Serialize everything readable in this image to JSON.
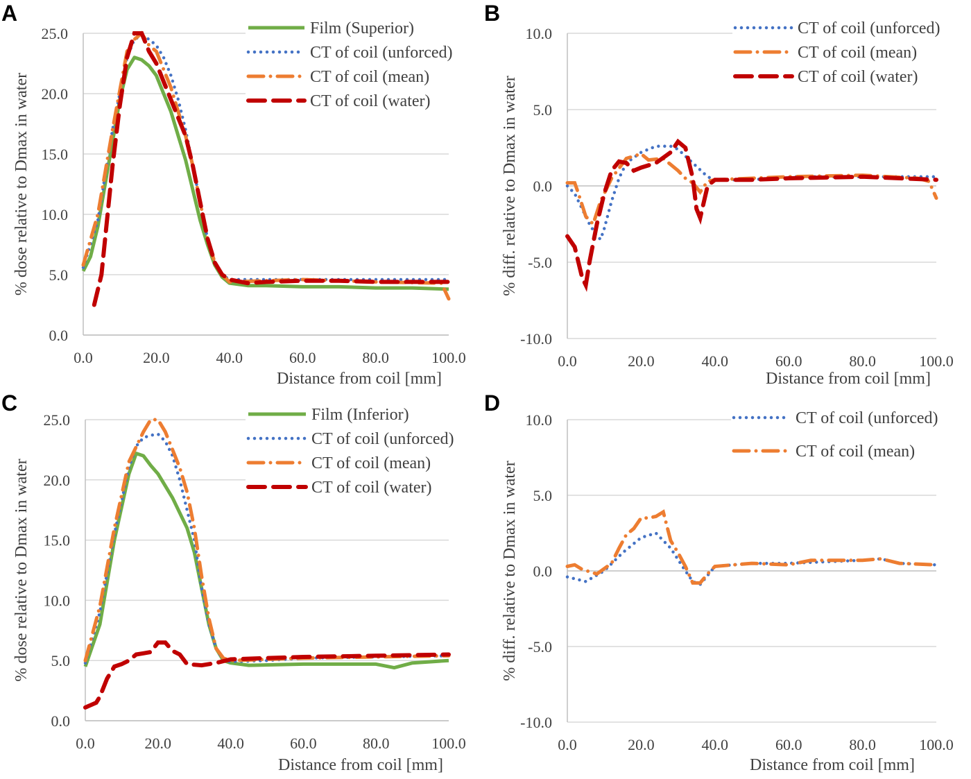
{
  "colors": {
    "film": "#70ad47",
    "unforced": "#4472c4",
    "mean": "#ed7d31",
    "water": "#c00000",
    "grid": "#d9d9d9",
    "axis": "#bfbfbf"
  },
  "chart_data": [
    {
      "panel": "A",
      "type": "line",
      "xlabel": "Distance from coil [mm]",
      "ylabel": "% dose relative to Dmax in water",
      "xlim": [
        0,
        100
      ],
      "ylim": [
        0,
        25
      ],
      "xticks": [
        0,
        20,
        40,
        60,
        80,
        100
      ],
      "xtick_labels": [
        "0.0",
        "20.0",
        "40.0",
        "60.0",
        "80.0",
        "100.0"
      ],
      "yticks": [
        0,
        5,
        10,
        15,
        20,
        25
      ],
      "ytick_labels": [
        "0.0",
        "5.0",
        "10.0",
        "15.0",
        "20.0",
        "25.0"
      ],
      "legend": "top-right",
      "grid": true,
      "series": [
        {
          "name": "Film (Superior)",
          "style": "film",
          "x": [
            0,
            2,
            4,
            6,
            8,
            10,
            12,
            14,
            16,
            18,
            20,
            22,
            24,
            26,
            28,
            30,
            32,
            34,
            36,
            38,
            40,
            45,
            50,
            60,
            70,
            80,
            90,
            100
          ],
          "y": [
            5.3,
            6.5,
            9,
            12.5,
            16,
            19.5,
            22,
            23,
            22.8,
            22.3,
            21.5,
            20,
            18.5,
            16.5,
            14.5,
            12,
            9.5,
            7.5,
            5.8,
            4.8,
            4.3,
            4.1,
            4.1,
            4.0,
            4.0,
            3.9,
            3.9,
            3.8
          ]
        },
        {
          "name": "CT of coil (unforced)",
          "style": "unforced",
          "x": [
            0,
            4,
            8,
            12,
            14,
            16,
            18,
            20,
            22,
            24,
            26,
            28,
            30,
            32,
            34,
            36,
            38,
            40,
            50,
            60,
            80,
            100
          ],
          "y": [
            5.6,
            9.5,
            17,
            23,
            24.5,
            24.8,
            24.5,
            24,
            23,
            21.5,
            19.5,
            17,
            14,
            11,
            8,
            6,
            5,
            4.6,
            4.6,
            4.6,
            4.6,
            4.6
          ]
        },
        {
          "name": "CT of coil (mean)",
          "style": "mean",
          "x": [
            0,
            4,
            8,
            12,
            14,
            16,
            18,
            20,
            22,
            24,
            26,
            28,
            30,
            32,
            34,
            36,
            38,
            40,
            60,
            80,
            98,
            100
          ],
          "y": [
            5.8,
            10,
            17,
            23.5,
            24.5,
            25,
            24,
            23.5,
            22,
            20.5,
            18.5,
            16.5,
            14,
            11,
            8,
            6,
            5,
            4.4,
            4.6,
            4.4,
            4.3,
            3.0
          ]
        },
        {
          "name": "CT of coil (water)",
          "style": "water",
          "x": [
            3,
            5,
            6,
            8,
            10,
            12,
            14,
            16,
            18,
            20,
            22,
            24,
            26,
            28,
            30,
            32,
            34,
            36,
            38,
            40,
            45,
            50,
            60,
            70,
            80,
            90,
            100
          ],
          "y": [
            2.5,
            5,
            8,
            14,
            19,
            23,
            25,
            25,
            23.5,
            22.5,
            21,
            19.5,
            18,
            16.5,
            14,
            11,
            8,
            6,
            5,
            4.6,
            4.3,
            4.4,
            4.5,
            4.5,
            4.4,
            4.4,
            4.4
          ]
        }
      ]
    },
    {
      "panel": "B",
      "type": "line",
      "xlabel": "Distance from coil [mm]",
      "ylabel": "% diff. relative to Dmax in water",
      "xlim": [
        0,
        100
      ],
      "ylim": [
        -10,
        10
      ],
      "xticks": [
        0,
        20,
        40,
        60,
        80,
        100
      ],
      "xtick_labels": [
        "0.0",
        "20.0",
        "40.0",
        "60.0",
        "80.0",
        "100.0"
      ],
      "yticks": [
        -10,
        -5,
        0,
        5,
        10
      ],
      "ytick_labels": [
        "-10.0",
        "-5.0",
        "0.0",
        "5.0",
        "10.0"
      ],
      "legend": "top-right",
      "grid": true,
      "series": [
        {
          "name": "CT of coil (unforced)",
          "style": "unforced",
          "x": [
            0,
            2,
            4,
            6,
            8,
            9,
            10,
            12,
            14,
            16,
            20,
            24,
            28,
            30,
            34,
            38,
            40,
            50,
            60,
            80,
            100
          ],
          "y": [
            0,
            -0.5,
            -1.5,
            -2.5,
            -3.3,
            -3.5,
            -2.8,
            -1,
            0.5,
            1.5,
            2.2,
            2.6,
            2.6,
            2.4,
            1.5,
            0.6,
            0.4,
            0.4,
            0.6,
            0.6,
            0.6
          ]
        },
        {
          "name": "CT of coil (mean)",
          "style": "mean",
          "x": [
            0,
            2,
            3,
            5,
            7,
            9,
            12,
            16,
            20,
            22,
            26,
            30,
            32,
            34,
            36,
            38,
            40,
            50,
            60,
            80,
            95,
            98,
            100
          ],
          "y": [
            0.2,
            0.2,
            -0.5,
            -2,
            -2.5,
            -1,
            0.5,
            1.8,
            2.1,
            1.7,
            1.8,
            1.0,
            0.5,
            0.2,
            -0.4,
            0.3,
            0.4,
            0.5,
            0.6,
            0.7,
            0.5,
            0.3,
            -0.8
          ]
        },
        {
          "name": "CT of coil (water)",
          "style": "water",
          "x": [
            0,
            2,
            4,
            5,
            6,
            8,
            10,
            12,
            14,
            16,
            18,
            20,
            24,
            28,
            30,
            32,
            34,
            35,
            36,
            38,
            40,
            50,
            60,
            80,
            100
          ],
          "y": [
            -3.3,
            -4,
            -6,
            -6.5,
            -5,
            -2.5,
            -0.5,
            1,
            1.6,
            1.5,
            1.0,
            1.2,
            1.5,
            2.2,
            2.9,
            2.5,
            0.5,
            -1.5,
            -2.1,
            0,
            0.4,
            0.4,
            0.5,
            0.6,
            0.4
          ]
        }
      ]
    },
    {
      "panel": "C",
      "type": "line",
      "xlabel": "Distance from coil [mm]",
      "ylabel": "% dose relative to Dmax in water",
      "xlim": [
        0,
        100
      ],
      "ylim": [
        0,
        25
      ],
      "xticks": [
        0,
        20,
        40,
        60,
        80,
        100
      ],
      "xtick_labels": [
        "0.0",
        "20.0",
        "40.0",
        "60.0",
        "80.0",
        "100.0"
      ],
      "yticks": [
        0,
        5,
        10,
        15,
        20,
        25
      ],
      "ytick_labels": [
        "0.0",
        "5.0",
        "10.0",
        "15.0",
        "20.0",
        "25.0"
      ],
      "legend": "top-right",
      "grid": true,
      "series": [
        {
          "name": "Film (Inferior)",
          "style": "film",
          "x": [
            0,
            4,
            8,
            12,
            14,
            16,
            18,
            20,
            24,
            28,
            30,
            32,
            34,
            36,
            38,
            40,
            45,
            60,
            80,
            85,
            90,
            100
          ],
          "y": [
            4.5,
            8,
            15,
            20.5,
            22.2,
            22,
            21.2,
            20.5,
            18.5,
            16,
            14,
            11,
            8,
            6,
            5,
            4.8,
            4.6,
            4.7,
            4.7,
            4.4,
            4.8,
            5.0
          ]
        },
        {
          "name": "CT of coil (unforced)",
          "style": "unforced",
          "x": [
            0,
            4,
            8,
            12,
            14,
            16,
            18,
            20,
            22,
            24,
            26,
            28,
            30,
            32,
            34,
            36,
            38,
            40,
            50,
            60,
            80,
            100
          ],
          "y": [
            4.8,
            9,
            15.5,
            21,
            22.8,
            23.5,
            23.7,
            23.8,
            23.2,
            22,
            20,
            17.5,
            15,
            11,
            8,
            6,
            5,
            4.9,
            5,
            5.2,
            5.3,
            5.4
          ]
        },
        {
          "name": "CT of coil (mean)",
          "style": "mean",
          "x": [
            0,
            4,
            8,
            12,
            16,
            18,
            20,
            22,
            24,
            26,
            28,
            30,
            32,
            34,
            36,
            38,
            40,
            50,
            60,
            80,
            100
          ],
          "y": [
            5.0,
            9.5,
            16,
            21.5,
            24,
            25,
            25,
            24,
            22.5,
            21,
            19,
            16,
            12,
            8.5,
            6,
            5.2,
            5,
            5.1,
            5.2,
            5.3,
            5.4
          ]
        },
        {
          "name": "CT of coil (water)",
          "style": "water",
          "x": [
            0,
            3,
            4,
            6,
            8,
            10,
            12,
            14,
            16,
            18,
            20,
            22,
            24,
            26,
            28,
            32,
            36,
            40,
            50,
            60,
            80,
            100
          ],
          "y": [
            1.1,
            1.5,
            2,
            3.5,
            4.5,
            4.7,
            5,
            5.5,
            5.6,
            5.7,
            6.5,
            6.5,
            5.8,
            5.5,
            4.7,
            4.6,
            4.8,
            5.1,
            5.2,
            5.3,
            5.4,
            5.5
          ]
        }
      ]
    },
    {
      "panel": "D",
      "type": "line",
      "xlabel": "Distance from coil [mm]",
      "ylabel": "% diff. relative to Dmax in water",
      "xlim": [
        0,
        100
      ],
      "ylim": [
        -10,
        10
      ],
      "xticks": [
        0,
        20,
        40,
        60,
        80,
        100
      ],
      "xtick_labels": [
        "0.0",
        "20.0",
        "40.0",
        "60.0",
        "80.0",
        "100.0"
      ],
      "yticks": [
        -10,
        -5,
        0,
        5,
        10
      ],
      "ytick_labels": [
        "-10.0",
        "-5.0",
        "0.0",
        "5.0",
        "10.0"
      ],
      "legend": "top-right",
      "grid": true,
      "series": [
        {
          "name": "CT of coil (unforced)",
          "style": "unforced",
          "x": [
            0,
            5,
            10,
            15,
            20,
            24,
            28,
            32,
            34,
            36,
            38,
            40,
            50,
            60,
            80,
            85,
            90,
            100
          ],
          "y": [
            -0.4,
            -0.7,
            0,
            1.2,
            2.2,
            2.5,
            1.5,
            0,
            -0.7,
            -0.9,
            -0.3,
            0.3,
            0.5,
            0.5,
            0.7,
            0.8,
            0.5,
            0.4
          ]
        },
        {
          "name": "CT of coil (mean)",
          "style": "mean",
          "x": [
            0,
            2,
            4,
            8,
            12,
            14,
            16,
            18,
            20,
            22,
            24,
            26,
            28,
            30,
            32,
            34,
            36,
            38,
            40,
            50,
            60,
            66,
            80,
            85,
            90,
            100
          ],
          "y": [
            0.3,
            0.4,
            0.1,
            -0.2,
            0.5,
            1.5,
            2.4,
            2.8,
            3.5,
            3.5,
            3.6,
            3.9,
            2.0,
            1.2,
            0.3,
            -0.8,
            -0.8,
            -0.2,
            0.3,
            0.5,
            0.4,
            0.7,
            0.7,
            0.8,
            0.5,
            0.4
          ]
        }
      ]
    }
  ]
}
